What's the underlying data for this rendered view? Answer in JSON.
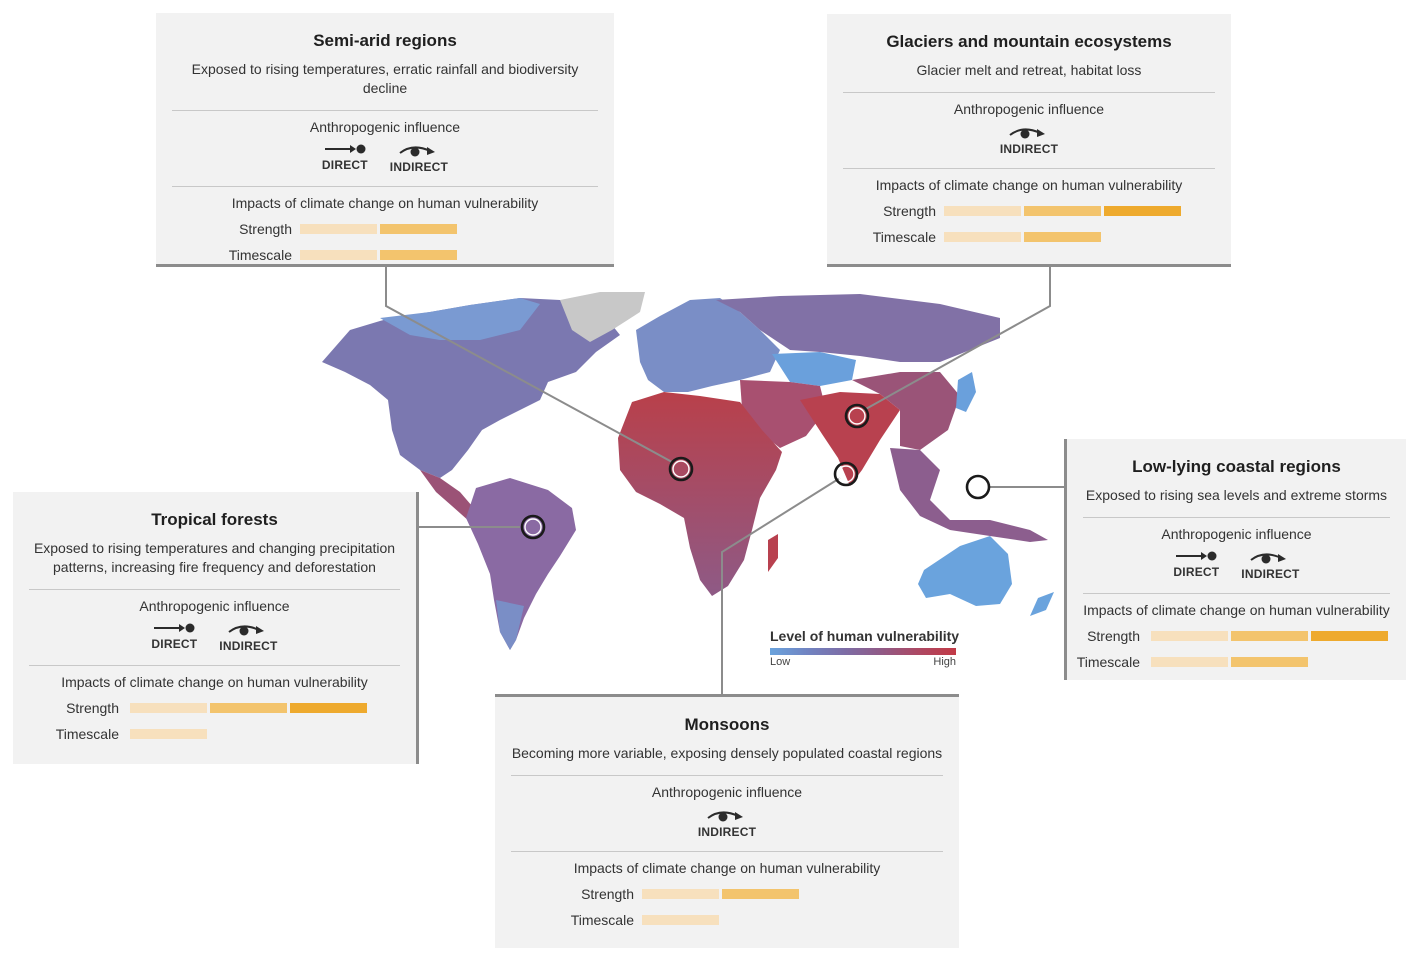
{
  "legend": {
    "title": "Level of human vulnerability",
    "low": "Low",
    "high": "High",
    "colors": [
      "#6aa3dd",
      "#7184c2",
      "#7d6da6",
      "#915a86",
      "#ad4863",
      "#c23a46"
    ]
  },
  "colors": {
    "bar_level_1": "#f7e0bd",
    "bar_level_2": "#f3c46d",
    "bar_level_3": "#eeaa2e",
    "panel_bg": "#f2f2f2",
    "leader_line": "#8c8c8c",
    "greenland": "#c8c8c8"
  },
  "common": {
    "anthropogenic_heading": "Anthropogenic influence",
    "impacts_heading": "Impacts of climate change on human vulnerability",
    "strength_label": "Strength",
    "timescale_label": "Timescale",
    "direct_label": "DIRECT",
    "indirect_label": "INDIRECT"
  },
  "panels": {
    "semi_arid": {
      "title": "Semi-arid regions",
      "subtitle": "Exposed to rising temperatures, erratic rainfall and biodiversity decline",
      "direct": true,
      "indirect": true,
      "strength": 2,
      "timescale": 2
    },
    "glaciers": {
      "title": "Glaciers and mountain ecosystems",
      "subtitle": "Glacier melt and retreat, habitat loss",
      "direct": false,
      "indirect": true,
      "strength": 3,
      "timescale": 2
    },
    "coastal": {
      "title": "Low-lying coastal regions",
      "subtitle": "Exposed to rising sea levels and extreme storms",
      "direct": true,
      "indirect": true,
      "strength": 3,
      "timescale": 2
    },
    "tropical": {
      "title": "Tropical forests",
      "subtitle_line1": "Exposed to rising temperatures and changing precipitation",
      "subtitle_line2": "patterns, increasing fire frequency and deforestation",
      "direct": true,
      "indirect": true,
      "strength": 3,
      "timescale": 1
    },
    "monsoons": {
      "title": "Monsoons",
      "subtitle": "Becoming more variable, exposing densely populated coastal regions",
      "direct": false,
      "indirect": true,
      "strength": 2,
      "timescale": 1
    }
  }
}
